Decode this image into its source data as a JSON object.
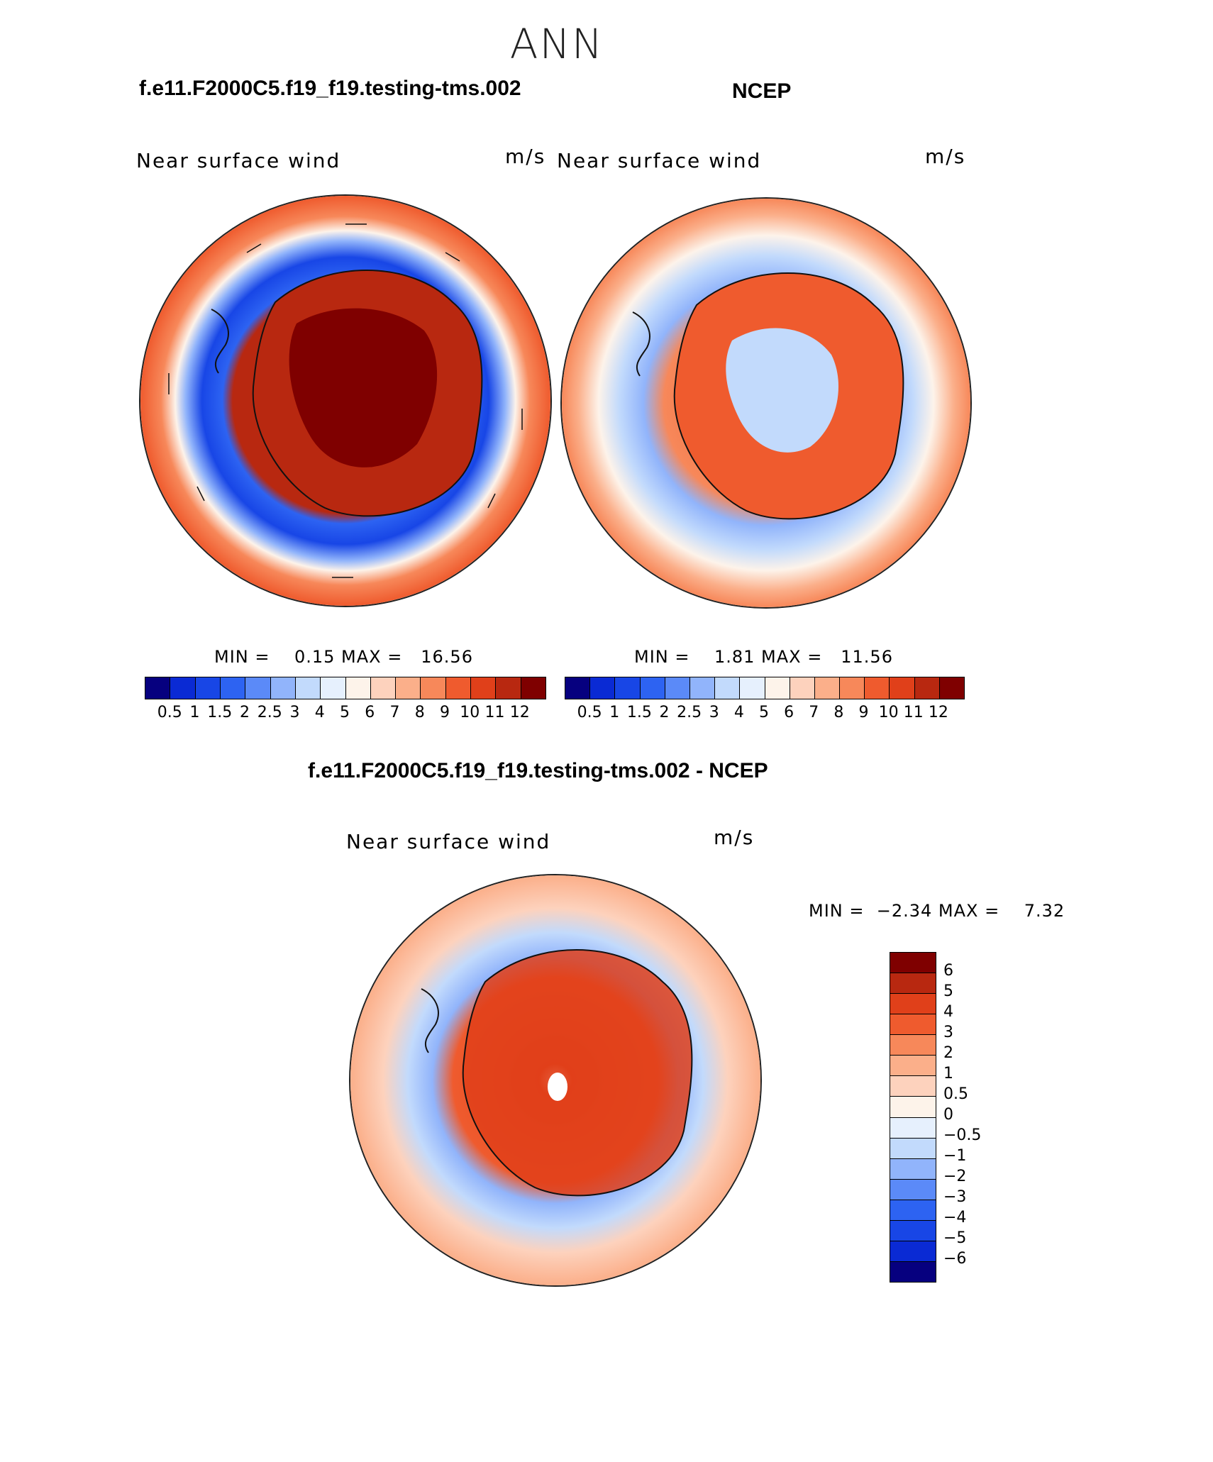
{
  "title": "ANN",
  "panels": {
    "model": {
      "case_title": "f.e11.F2000C5.f19_f19.testing-tms.002",
      "var_label": "Near surface wind",
      "units": "m/s",
      "minmax": "MIN =    0.15 MAX =   16.56"
    },
    "obs": {
      "case_title": "NCEP",
      "var_label": "Near surface wind",
      "units": "m/s",
      "minmax": "MIN =    1.81 MAX =   11.56"
    },
    "diff": {
      "case_title": "f.e11.F2000C5.f19_f19.testing-tms.002 - NCEP",
      "var_label": "Near surface wind",
      "units": "m/s",
      "minmax": "MIN =  −2.34 MAX =    7.32"
    }
  },
  "colorbar_abs": {
    "ticks": [
      "0.5",
      "1",
      "1.5",
      "2",
      "2.5",
      "3",
      "4",
      "5",
      "6",
      "7",
      "8",
      "9",
      "10",
      "11",
      "12"
    ],
    "colors": [
      "#06007f",
      "#0a2ad4",
      "#1846e6",
      "#2d63f2",
      "#5b8af8",
      "#91b4fb",
      "#c2dafc",
      "#e6f0fd",
      "#fdf3ea",
      "#fdd2bd",
      "#fbaf8a",
      "#f7885a",
      "#ef5b2e",
      "#e0401a",
      "#b82810",
      "#7f0000"
    ]
  },
  "colorbar_diff": {
    "ticks": [
      "6",
      "5",
      "4",
      "3",
      "2",
      "1",
      "0.5",
      "0",
      "−0.5",
      "−1",
      "−2",
      "−3",
      "−4",
      "−5",
      "−6"
    ],
    "colors": [
      "#7f0000",
      "#b82810",
      "#e0401a",
      "#ef5b2e",
      "#f7885a",
      "#fbaf8a",
      "#fdd2bd",
      "#fdf3ea",
      "#e6f0fd",
      "#c2dafc",
      "#91b4fb",
      "#5b8af8",
      "#2d63f2",
      "#1846e6",
      "#0a2ad4",
      "#06007f"
    ]
  }
}
